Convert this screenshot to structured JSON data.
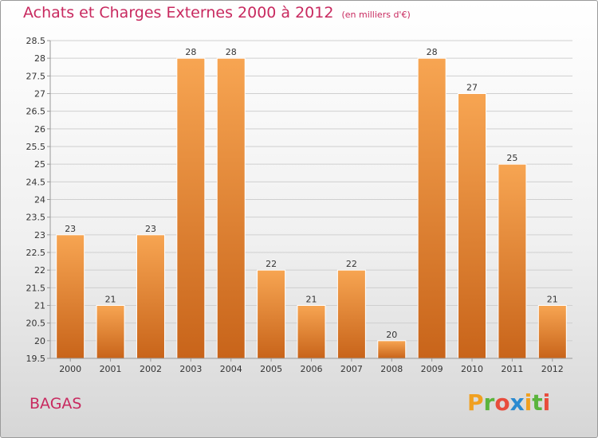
{
  "header": {
    "title": "Achats et Charges Externes 2000 à 2012",
    "unit": "(en milliers d'€)"
  },
  "footer": {
    "commune": "BAGAS",
    "logo_text": "Proxiti",
    "logo_colors": [
      "#f0a020",
      "#5ab43c",
      "#e84c3c",
      "#2a8ad0",
      "#f0a020",
      "#5ab43c",
      "#e84c3c"
    ]
  },
  "chart_data": {
    "type": "bar",
    "title": "Achats et Charges Externes 2000 à 2012",
    "subtitle": "(en milliers d'€)",
    "categories": [
      "2000",
      "2001",
      "2002",
      "2003",
      "2004",
      "2005",
      "2006",
      "2007",
      "2008",
      "2009",
      "2010",
      "2011",
      "2012"
    ],
    "values": [
      23,
      21,
      23,
      28,
      28,
      22,
      21,
      22,
      20,
      28,
      27,
      25,
      21
    ],
    "data_labels": [
      "23",
      "21",
      "23",
      "28",
      "28",
      "22",
      "21",
      "22",
      "20",
      "28",
      "27",
      "25",
      "21"
    ],
    "ylim": [
      19.5,
      28.5
    ],
    "yticks": [
      "19.5",
      "20",
      "20.5",
      "21",
      "21.5",
      "22",
      "22.5",
      "23",
      "23.5",
      "24",
      "24.5",
      "25",
      "25.5",
      "26",
      "26.5",
      "27",
      "27.5",
      "28",
      "28.5"
    ],
    "grid": true,
    "bar_color": "#f08a2a"
  }
}
